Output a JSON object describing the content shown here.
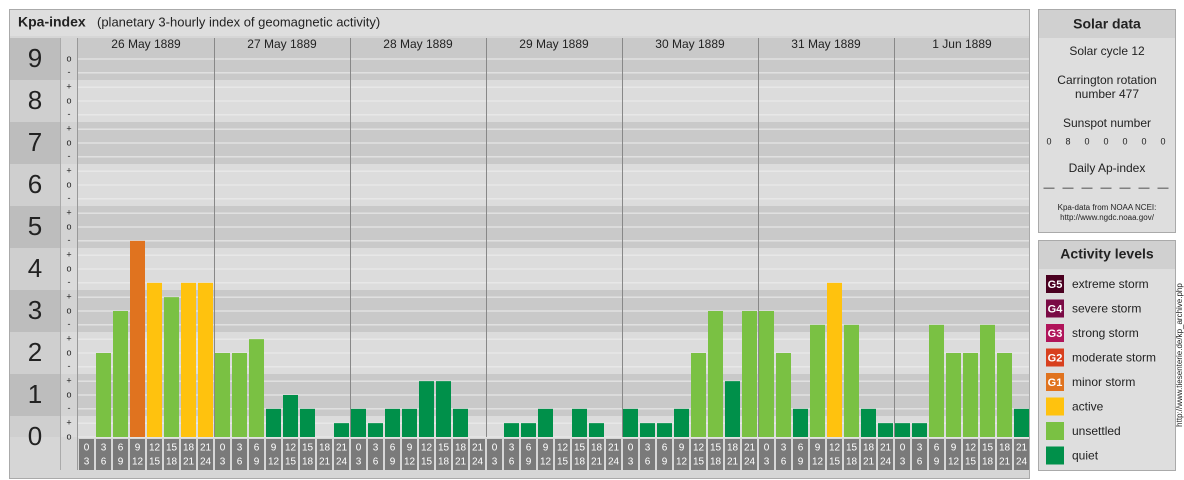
{
  "chart_data": {
    "type": "bar",
    "title": "Kpa-index",
    "subtitle": "(planetary 3-hourly index of geomagnetic activity)",
    "ylim": [
      0,
      9.5
    ],
    "yticks": [
      0,
      1,
      2,
      3,
      4,
      5,
      6,
      7,
      8,
      9
    ],
    "minor_yticks": [
      {
        "value": 0,
        "label": "o"
      },
      {
        "value": 0.33,
        "label": "+"
      },
      {
        "value": 0.67,
        "label": "-"
      },
      {
        "value": 1,
        "label": "o"
      },
      {
        "value": 1.33,
        "label": "+"
      },
      {
        "value": 1.67,
        "label": "-"
      },
      {
        "value": 2,
        "label": "o"
      },
      {
        "value": 2.33,
        "label": "+"
      },
      {
        "value": 2.67,
        "label": "-"
      },
      {
        "value": 3,
        "label": "o"
      },
      {
        "value": 3.33,
        "label": "+"
      },
      {
        "value": 3.67,
        "label": "-"
      },
      {
        "value": 4,
        "label": "o"
      },
      {
        "value": 4.33,
        "label": "+"
      },
      {
        "value": 4.67,
        "label": "-"
      },
      {
        "value": 5,
        "label": "o"
      },
      {
        "value": 5.33,
        "label": "+"
      },
      {
        "value": 5.67,
        "label": "-"
      },
      {
        "value": 6,
        "label": "o"
      },
      {
        "value": 6.33,
        "label": "+"
      },
      {
        "value": 6.67,
        "label": "-"
      },
      {
        "value": 7,
        "label": "o"
      },
      {
        "value": 7.33,
        "label": "+"
      },
      {
        "value": 7.67,
        "label": "-"
      },
      {
        "value": 8,
        "label": "o"
      },
      {
        "value": 8.33,
        "label": "+"
      },
      {
        "value": 8.67,
        "label": "-"
      },
      {
        "value": 9,
        "label": "o"
      }
    ],
    "intervals": [
      {
        "from": "0",
        "to": "3"
      },
      {
        "from": "3",
        "to": "6"
      },
      {
        "from": "6",
        "to": "9"
      },
      {
        "from": "9",
        "to": "12"
      },
      {
        "from": "12",
        "to": "15"
      },
      {
        "from": "15",
        "to": "18"
      },
      {
        "from": "18",
        "to": "21"
      },
      {
        "from": "21",
        "to": "24"
      }
    ],
    "days": [
      {
        "label": "26 May 1889",
        "values": [
          0,
          2,
          3,
          4.67,
          3.67,
          3.33,
          3.67,
          3.67
        ],
        "colors": [
          "#00904a",
          "#7ac143",
          "#7ac143",
          "#e0731f",
          "#ffc20e",
          "#7ac143",
          "#ffc20e",
          "#ffc20e"
        ]
      },
      {
        "label": "27 May 1889",
        "values": [
          2,
          2,
          2.33,
          0.67,
          1,
          0.67,
          0,
          0.33
        ],
        "colors": [
          "#7ac143",
          "#7ac143",
          "#7ac143",
          "#00904a",
          "#00904a",
          "#00904a",
          "#00904a",
          "#00904a"
        ]
      },
      {
        "label": "28 May 1889",
        "values": [
          0.67,
          0.33,
          0.67,
          0.67,
          1.33,
          1.33,
          0.67,
          0
        ],
        "colors": [
          "#00904a",
          "#00904a",
          "#00904a",
          "#00904a",
          "#00904a",
          "#00904a",
          "#00904a",
          "#00904a"
        ]
      },
      {
        "label": "29 May 1889",
        "values": [
          0,
          0.33,
          0.33,
          0.67,
          0,
          0.67,
          0.33,
          0
        ],
        "colors": [
          "#00904a",
          "#00904a",
          "#00904a",
          "#00904a",
          "#00904a",
          "#00904a",
          "#00904a",
          "#00904a"
        ]
      },
      {
        "label": "30 May 1889",
        "values": [
          0.67,
          0.33,
          0.33,
          0.67,
          2,
          3,
          1.33,
          3
        ],
        "colors": [
          "#00904a",
          "#00904a",
          "#00904a",
          "#00904a",
          "#7ac143",
          "#7ac143",
          "#00904a",
          "#7ac143"
        ]
      },
      {
        "label": "31 May 1889",
        "values": [
          3,
          2,
          0.67,
          2.67,
          3.67,
          2.67,
          0.67,
          0.33
        ],
        "colors": [
          "#7ac143",
          "#7ac143",
          "#00904a",
          "#7ac143",
          "#ffc20e",
          "#7ac143",
          "#00904a",
          "#00904a"
        ]
      },
      {
        "label": "1 Jun 1889",
        "values": [
          0.33,
          0.33,
          2.67,
          2,
          2,
          2.67,
          2,
          0.67
        ],
        "colors": [
          "#00904a",
          "#00904a",
          "#7ac143",
          "#7ac143",
          "#7ac143",
          "#7ac143",
          "#7ac143",
          "#00904a"
        ]
      }
    ]
  },
  "solar_data": {
    "title": "Solar data",
    "cycle": "Solar cycle 12",
    "carrington": [
      "Carrington rotation",
      "number 477"
    ],
    "sunspot_title": "Sunspot number",
    "sunspots": [
      0,
      8,
      0,
      0,
      0,
      0,
      0
    ],
    "ap_title": "Daily Ap-index",
    "ap": [
      "—",
      "—",
      "—",
      "—",
      "—",
      "—",
      "—"
    ],
    "source": [
      "Kpa-data from NOAA NCEI:",
      "http://www.ngdc.noaa.gov/"
    ]
  },
  "activity_levels": {
    "title": "Activity levels",
    "items": [
      {
        "code": "G5",
        "label": "extreme storm",
        "color": "#4a0020"
      },
      {
        "code": "G4",
        "label": "severe storm",
        "color": "#7a0a45"
      },
      {
        "code": "G3",
        "label": "strong storm",
        "color": "#b0145a"
      },
      {
        "code": "G2",
        "label": "moderate storm",
        "color": "#d8401e"
      },
      {
        "code": "G1",
        "label": "minor storm",
        "color": "#e0731f"
      },
      {
        "label": "active",
        "color": "#ffc20e"
      },
      {
        "label": "unsettled",
        "color": "#7ac143"
      },
      {
        "label": "quiet",
        "color": "#00904a"
      }
    ]
  },
  "credit": "http://www.tiesenterie.de/kp_archive.php"
}
